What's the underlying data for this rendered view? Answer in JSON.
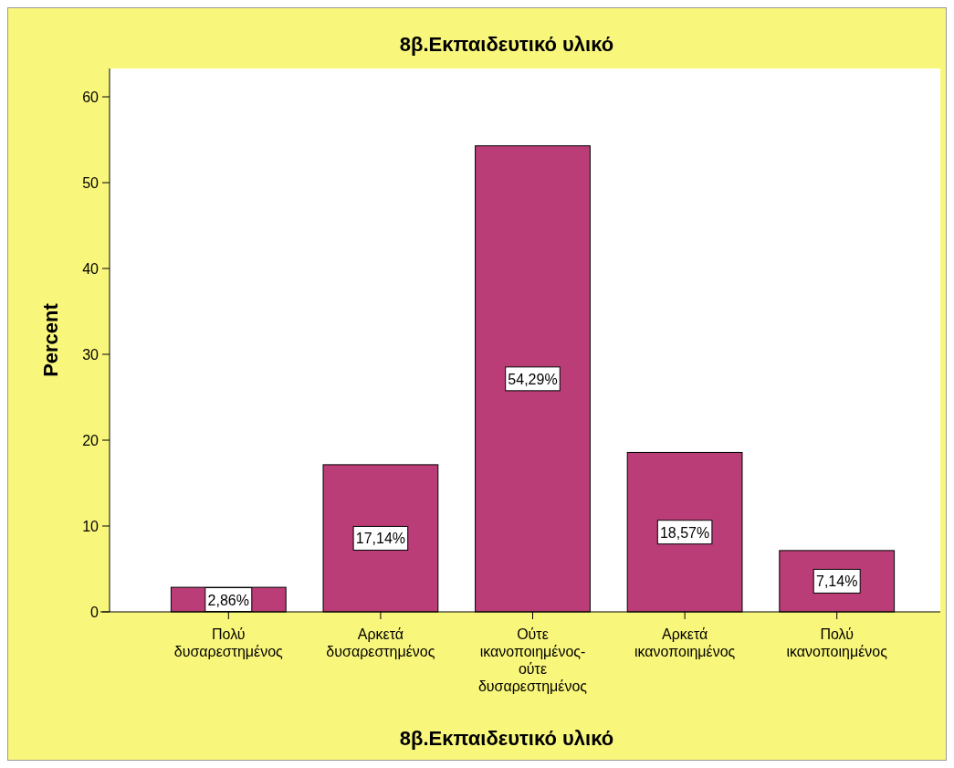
{
  "chart_data": {
    "type": "bar",
    "title": "8β.Εκπαιδευτικό υλικό",
    "xlabel": "8β.Εκπαιδευτικό υλικό",
    "ylabel": "Percent",
    "categories": [
      "Πολύ\nδυσαρεστημένος",
      "Αρκετά\nδυσαρεστημένος",
      "Ούτε\nικανοποιημένος-\nούτε\nδυσαρεστημένος",
      "Αρκετά\nικανοποιημένος",
      "Πολύ\nικανοποιημένος"
    ],
    "values": [
      2.86,
      17.14,
      54.29,
      18.57,
      7.14
    ],
    "value_labels": [
      "2,86%",
      "17,14%",
      "54,29%",
      "18,57%",
      "7,14%"
    ],
    "color": "#bb3d78",
    "ylim": [
      0,
      63.3
    ],
    "yticks": [
      0,
      10,
      20,
      30,
      40,
      50,
      60
    ],
    "grid": false
  }
}
